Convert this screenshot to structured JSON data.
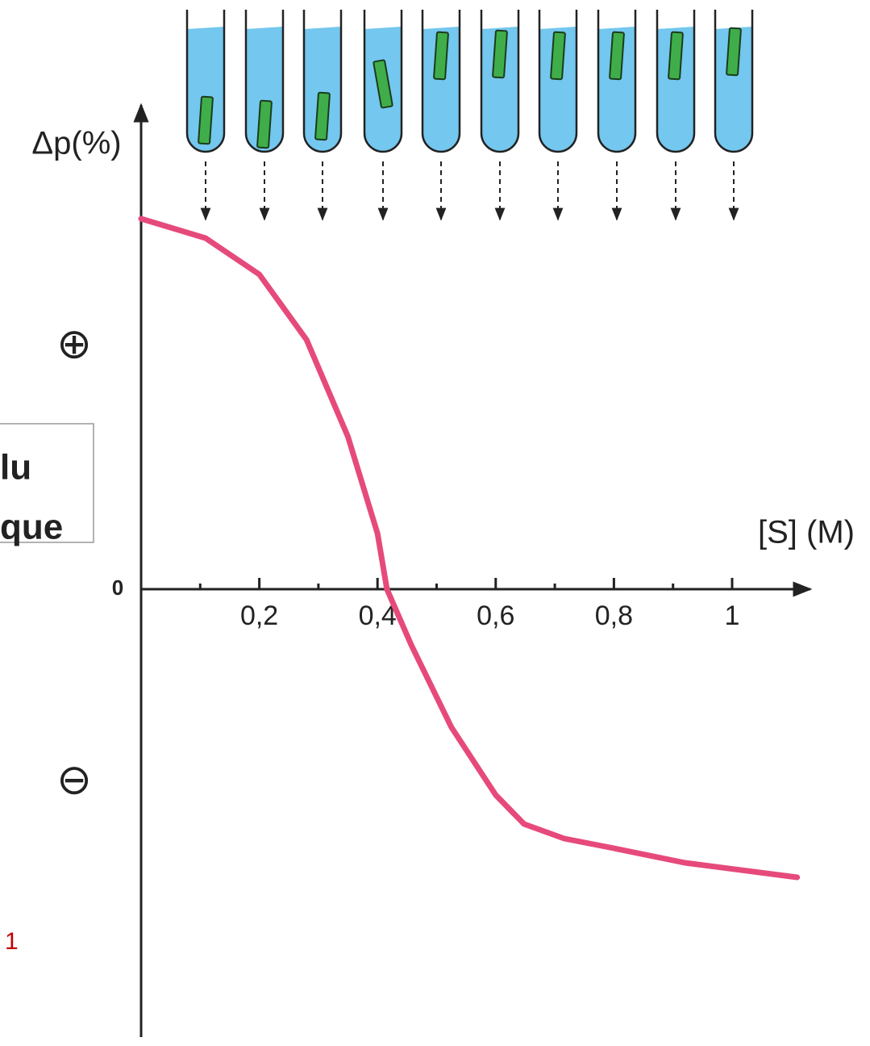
{
  "chart_data": {
    "type": "line",
    "y_label": "Δp(%)",
    "x_label": "[S] (M)",
    "x": [
      0,
      0.109,
      0.2,
      0.28,
      0.35,
      0.4,
      0.416,
      0.457,
      0.525,
      0.6,
      0.648,
      0.716,
      0.8,
      0.92,
      1.11
    ],
    "series": [
      {
        "color": "#e64a7b",
        "values": [
          15.3,
          14.5,
          13,
          10.3,
          6.3,
          2.3,
          0,
          -2.3,
          -5.7,
          -8.5,
          -9.7,
          -10.3,
          -10.7,
          -11.3,
          -11.9
        ]
      }
    ],
    "xlim": [
      0,
      1.13
    ],
    "ylim": [
      -18,
      20
    ],
    "xticks": [
      {
        "value": 0.2,
        "label": "0,2"
      },
      {
        "value": 0.4,
        "label": "0,4"
      },
      {
        "value": 0.6,
        "label": "0,6"
      },
      {
        "value": 0.8,
        "label": "0,8"
      },
      1
    ],
    "xminor": [
      0.1,
      0.3,
      0.5,
      0.7,
      0.9
    ],
    "yticks": [
      {
        "value": -8,
        "label": "⊖"
      },
      0,
      {
        "value": 10,
        "label": "⊕"
      }
    ],
    "annotations": [
      "lu",
      "que",
      "1"
    ]
  }
}
